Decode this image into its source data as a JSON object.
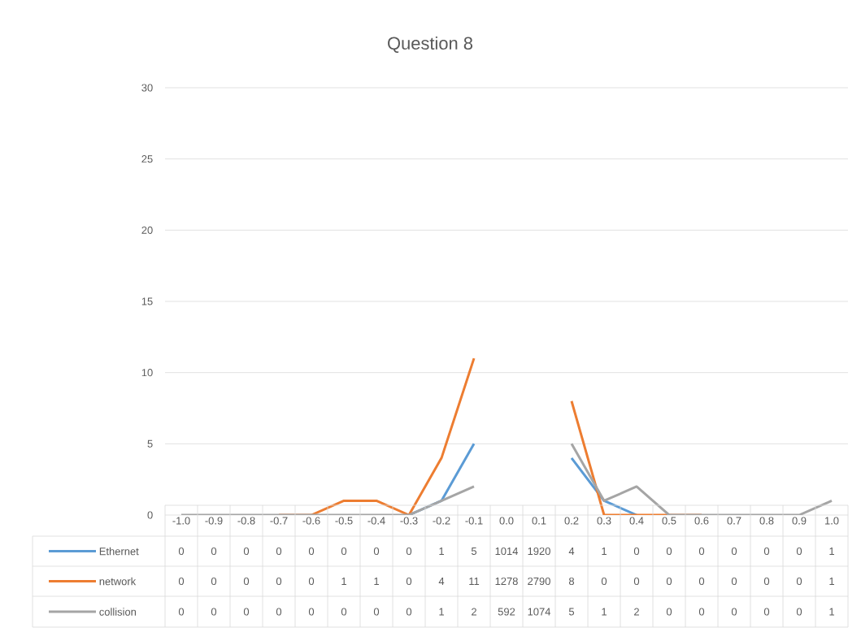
{
  "chart_data": {
    "type": "line",
    "title": "Question 8",
    "categories": [
      "-1.0",
      "-0.9",
      "-0.8",
      "-0.7",
      "-0.6",
      "-0.5",
      "-0.4",
      "-0.3",
      "-0.2",
      "-0.1",
      "0.0",
      "0.1",
      "0.2",
      "0.3",
      "0.4",
      "0.5",
      "0.6",
      "0.7",
      "0.8",
      "0.9",
      "1.0"
    ],
    "series": [
      {
        "name": "Ethernet",
        "color": "#5b9bd5",
        "values": [
          null,
          null,
          null,
          null,
          null,
          null,
          null,
          0,
          1,
          5,
          null,
          null,
          4,
          1,
          0,
          null,
          null,
          null,
          null,
          null,
          null
        ],
        "value_labels": [
          "0",
          "0",
          "0",
          "0",
          "0",
          "0",
          "0",
          "0",
          "1",
          "5",
          "1014",
          "1920",
          "4",
          "1",
          "0",
          "0",
          "0",
          "0",
          "0",
          "0",
          "1"
        ]
      },
      {
        "name": "network",
        "color": "#ed7d31",
        "values": [
          null,
          null,
          null,
          0,
          0,
          1,
          1,
          0,
          4,
          11,
          null,
          null,
          8,
          0,
          0,
          0,
          0,
          null,
          null,
          null,
          null
        ],
        "value_labels": [
          "0",
          "0",
          "0",
          "0",
          "0",
          "1",
          "1",
          "0",
          "4",
          "11",
          "1278",
          "2790",
          "8",
          "0",
          "0",
          "0",
          "0",
          "0",
          "0",
          "0",
          "1"
        ]
      },
      {
        "name": "collision",
        "color": "#a5a5a5",
        "values": [
          0,
          0,
          0,
          0,
          0,
          0,
          0,
          0,
          1,
          2,
          null,
          null,
          5,
          1,
          2,
          0,
          0,
          0,
          0,
          0,
          1
        ],
        "value_labels": [
          "0",
          "0",
          "0",
          "0",
          "0",
          "0",
          "0",
          "0",
          "1",
          "2",
          "592",
          "1074",
          "5",
          "1",
          "2",
          "0",
          "0",
          "0",
          "0",
          "0",
          "1"
        ]
      }
    ],
    "ylim": [
      0,
      30
    ],
    "yticks": [
      0,
      5,
      10,
      15,
      20,
      25,
      30
    ],
    "grid": "y",
    "legend": "bottom"
  }
}
